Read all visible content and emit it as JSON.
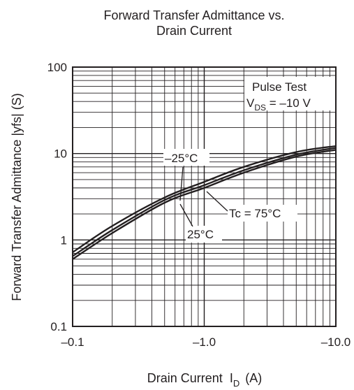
{
  "chart_data": {
    "type": "line",
    "title_line1": "Forward Transfer Admittance vs.",
    "title_line2": "Drain Current",
    "xlabel": "Drain Current",
    "xlabel_symbol": "I",
    "xlabel_sub": "D",
    "xlabel_unit": "(A)",
    "ylabel": "Forward Transfer Admittance  |yfs|  (S)",
    "x_scale": "log",
    "y_scale": "log",
    "xlim": [
      -0.1,
      -10.0
    ],
    "ylim": [
      0.1,
      100
    ],
    "x_tick_labels": [
      "–0.1",
      "–1.0",
      "–10.0"
    ],
    "y_tick_labels": [
      "0.1",
      "1",
      "10",
      "100"
    ],
    "grid": true,
    "x": [
      -0.1,
      -0.2,
      -0.5,
      -1.0,
      -2.0,
      -5.0,
      -10.0
    ],
    "series": [
      {
        "name": "–25°C",
        "values": [
          0.72,
          1.45,
          3.1,
          4.7,
          7.0,
          10.4,
          12.2
        ]
      },
      {
        "name": "Tc = 75°C",
        "values": [
          0.65,
          1.3,
          2.9,
          4.3,
          6.4,
          9.7,
          11.6
        ]
      },
      {
        "name": "25°C",
        "values": [
          0.6,
          1.2,
          2.7,
          4.0,
          6.0,
          9.2,
          11.0
        ]
      }
    ],
    "annotation_line1": "Pulse Test",
    "annotation_v": "V",
    "annotation_sub": "DS",
    "annotation_rest": " = –10 V"
  }
}
